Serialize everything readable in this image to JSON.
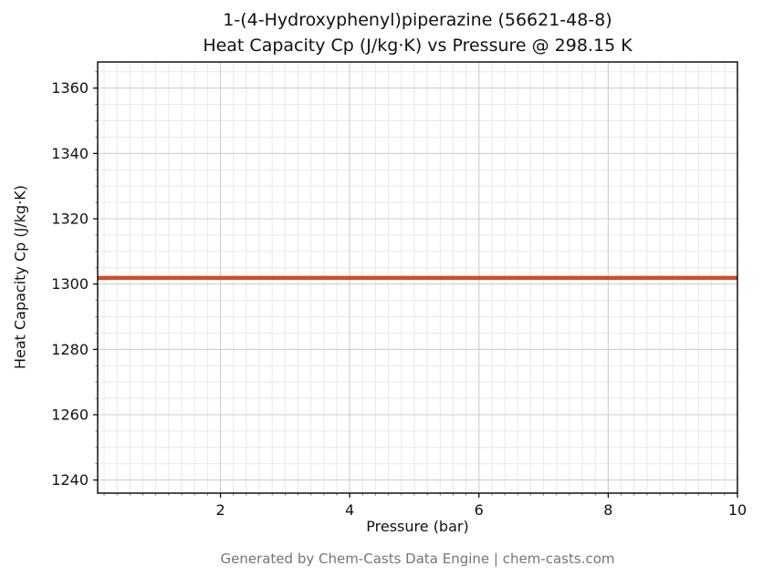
{
  "chart_data": {
    "type": "line",
    "title": "1-(4-Hydroxyphenyl)piperazine (56621-48-8)",
    "subtitle": "Heat Capacity Cp (J/kg·K) vs Pressure @ 298.15 K",
    "xlabel": "Pressure (bar)",
    "ylabel": "Heat Capacity Cp (J/kg·K)",
    "footer": "Generated by Chem-Casts Data Engine | chem-casts.com",
    "xlim": [
      0.1,
      10
    ],
    "ylim": [
      1236,
      1368
    ],
    "xticks": [
      2,
      4,
      6,
      8,
      10
    ],
    "yticks": [
      1240,
      1260,
      1280,
      1300,
      1320,
      1340,
      1360
    ],
    "x_minor_step": 0.2,
    "y_minor_step": 5,
    "grid": true,
    "legend": "none",
    "colors": {
      "line": "#c9502e",
      "grid_major": "#cdcdcd",
      "grid_minor": "#e8e8e8",
      "spine": "#000000"
    },
    "series": [
      {
        "name": "Heat Capacity Cp",
        "x": [
          0.1,
          10
        ],
        "values": [
          1301.9,
          1301.9
        ]
      }
    ]
  }
}
